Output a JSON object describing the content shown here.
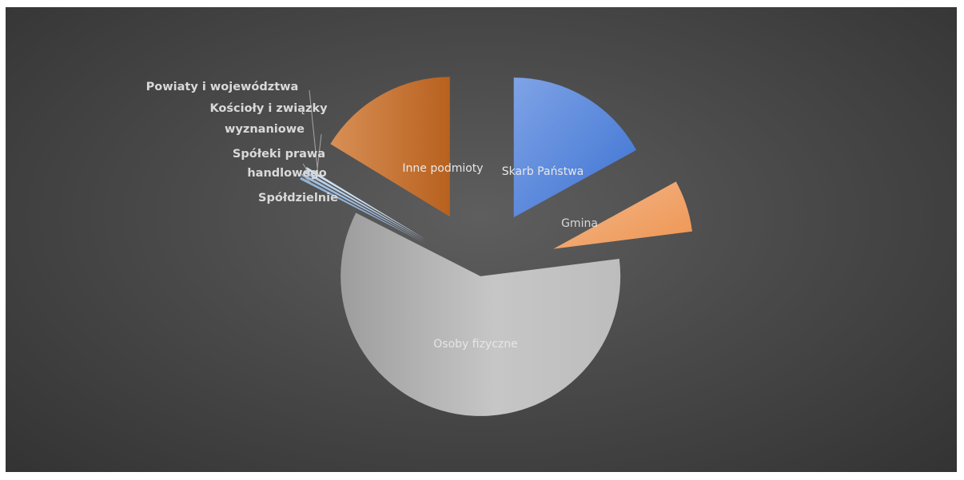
{
  "chart_data": {
    "type": "pie",
    "title": "",
    "exploded": true,
    "slices": [
      {
        "label": "Skarb Państwa",
        "value": 17.0,
        "color": "#5b8bd9",
        "label_color": "#e8e8e8"
      },
      {
        "label": "Gmina",
        "value": 6.0,
        "color": "#f0a870",
        "label_color": "#e6e6e6"
      },
      {
        "label": "Osoby fizyczne",
        "value": 59.5,
        "color": "#bcbcbc",
        "label_color": "#ededed"
      },
      {
        "label": "Spółdzielnie",
        "value": 0.3,
        "color": "#8fb4d8",
        "label_color": "#d9d9d9"
      },
      {
        "label": "Spółeki prawa handlowego",
        "value": 0.3,
        "color": "#a3bfe0",
        "label_color": "#d9d9d9"
      },
      {
        "label": "Kościoły i związky wyznaniowe",
        "value": 0.3,
        "color": "#b8d0ea",
        "label_color": "#d9d9d9"
      },
      {
        "label": "Powiaty i województwa",
        "value": 0.3,
        "color": "#cfdff0",
        "label_color": "#d9d9d9"
      },
      {
        "label": "Inne podmioty",
        "value": 16.3,
        "color": "#c97a3e",
        "label_color": "#e8e8e8"
      }
    ],
    "legend": "none",
    "data_labels": "category-name"
  }
}
